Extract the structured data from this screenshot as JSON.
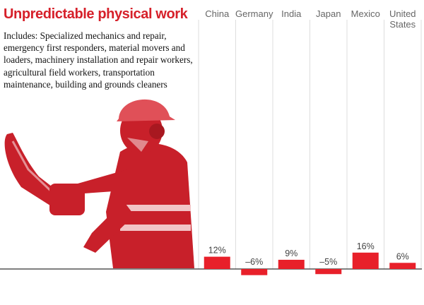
{
  "chart_data": {
    "type": "bar",
    "title": "Unpredictable physical work",
    "subtitle": "Includes: Specialized mechanics and repair, emergency first responders, material movers and loaders, machinery installation and repair workers, agricultural field workers, transportation maintenance, building and grounds cleaners",
    "categories": [
      [
        "China"
      ],
      [
        "Germany"
      ],
      [
        "India"
      ],
      [
        "Japan"
      ],
      [
        "Mexico"
      ],
      [
        "United",
        "States"
      ]
    ],
    "values": [
      12,
      -6,
      9,
      -5,
      16,
      6
    ],
    "data_labels": [
      "12%",
      "–6%",
      "9%",
      "–5%",
      "16%",
      "6%"
    ],
    "xlabel": "",
    "ylabel": "",
    "ylim": [
      -10,
      20
    ],
    "colors": {
      "bar": "#e8202a",
      "title": "#d6202a",
      "illustration": "#c8202a"
    }
  }
}
